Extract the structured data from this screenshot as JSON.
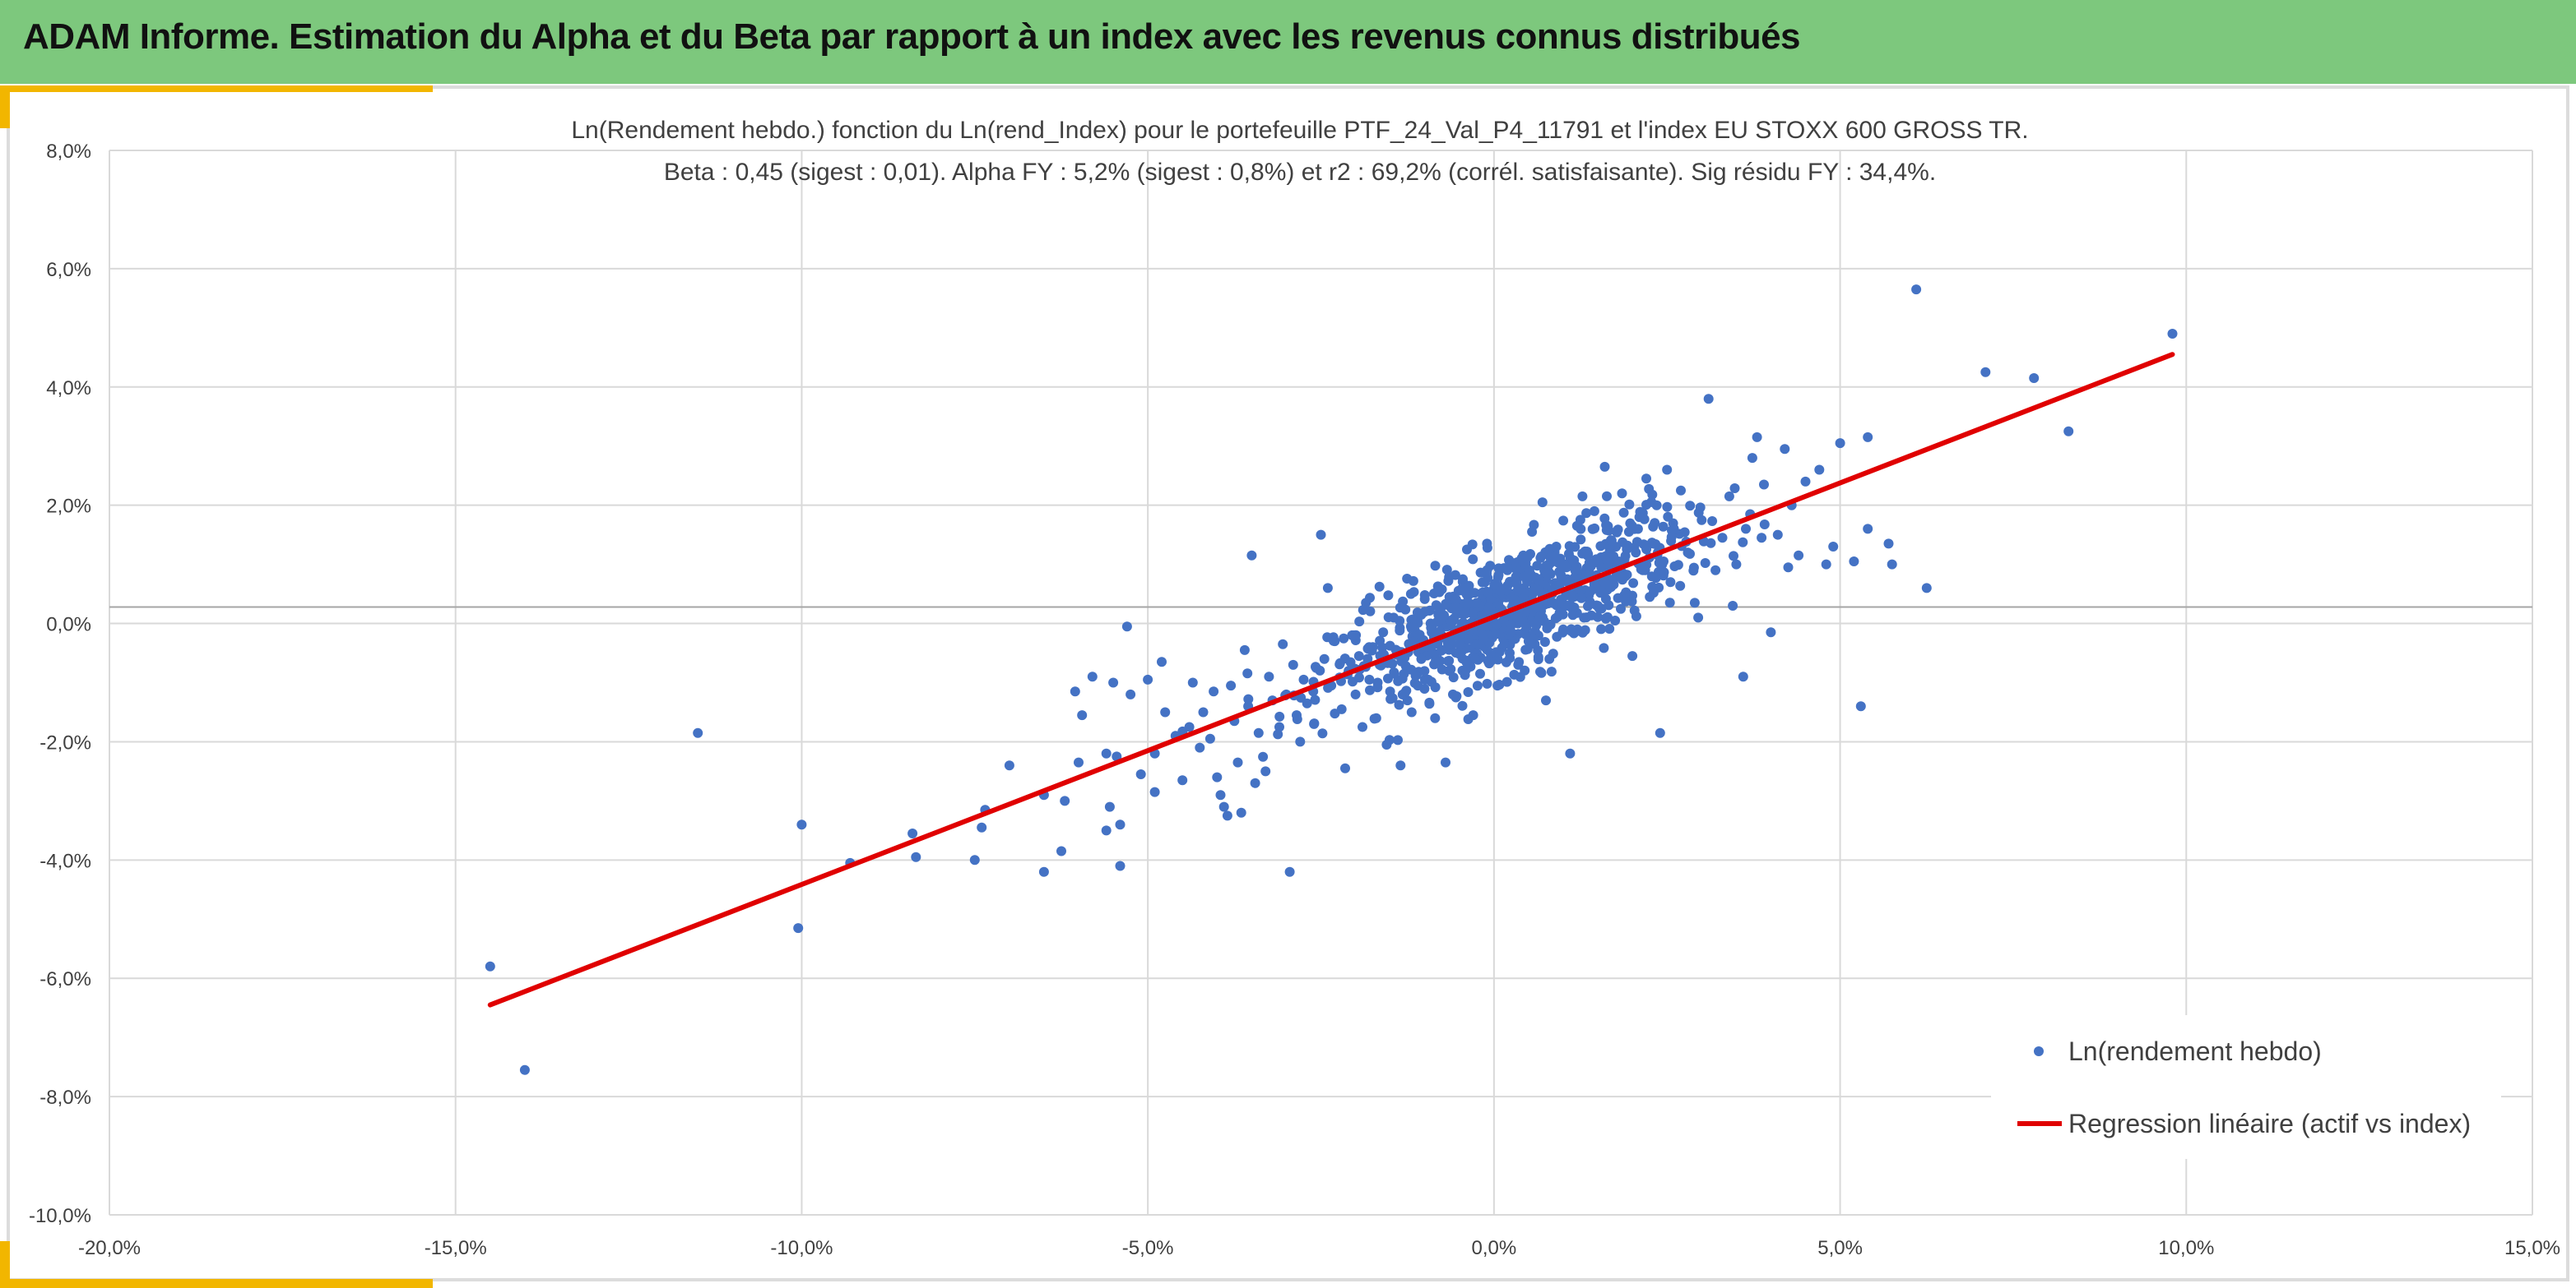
{
  "banner": {
    "title": "ADAM Informe. Estimation du Alpha et du Beta par rapport à un index avec les revenus connus distribués"
  },
  "colors": {
    "banner_bg": "#7dc87d",
    "accent": "#f2b600",
    "points": "#4472c4",
    "regression": "#e00000",
    "grid": "#d9d9d9"
  },
  "chart_data": {
    "type": "scatter",
    "title_line1": "Ln(Rendement hebdo.) fonction du Ln(rend_Index) pour le portefeuille PTF_24_Val_P4_11791 et l'index EU STOXX 600 GROSS TR.",
    "title_line2": "Beta : 0,45 (sigest : 0,01). Alpha FY : 5,2% (sigest : 0,8%) et r2 : 69,2% (corrél. satisfaisante). Sig résidu FY : 34,4%.",
    "xlim": [
      -20,
      15
    ],
    "ylim": [
      -10,
      8
    ],
    "x_unit": "%",
    "y_unit": "%",
    "x_ticks": [
      "-20,0%",
      "-15,0%",
      "-10,0%",
      "-5,0%",
      "0,0%",
      "5,0%",
      "10,0%",
      "15,0%"
    ],
    "x_tick_values": [
      -20,
      -15,
      -10,
      -5,
      0,
      5,
      10,
      15
    ],
    "y_ticks": [
      "8,0%",
      "6,0%",
      "4,0%",
      "2,0%",
      "0,0%",
      "-2,0%",
      "-4,0%",
      "-6,0%",
      "-8,0%",
      "-10,0%"
    ],
    "y_tick_values": [
      8,
      6,
      4,
      2,
      0,
      -2,
      -4,
      -6,
      -8,
      -10
    ],
    "grid": true,
    "legend_position": "bottom-right",
    "series": [
      {
        "name": "Ln(rendement hebdo)",
        "kind": "scatter",
        "color": "#4472c4",
        "points": [
          [
            -14.5,
            -5.8
          ],
          [
            -14.0,
            -7.55
          ],
          [
            -11.5,
            -1.85
          ],
          [
            -10.0,
            -3.4
          ],
          [
            -10.05,
            -5.15
          ],
          [
            -9.3,
            -4.05
          ],
          [
            -8.4,
            -3.55
          ],
          [
            -8.35,
            -3.95
          ],
          [
            -7.5,
            -4.0
          ],
          [
            -7.35,
            -3.15
          ],
          [
            -7.4,
            -3.45
          ],
          [
            -7.0,
            -2.4
          ],
          [
            -6.5,
            -4.2
          ],
          [
            -6.25,
            -3.85
          ],
          [
            -6.5,
            -2.9
          ],
          [
            -6.2,
            -3.0
          ],
          [
            -6.0,
            -2.35
          ],
          [
            -5.8,
            -0.9
          ],
          [
            -5.95,
            -1.55
          ],
          [
            -6.05,
            -1.15
          ],
          [
            -5.5,
            -1.0
          ],
          [
            -5.6,
            -2.2
          ],
          [
            -5.45,
            -2.25
          ],
          [
            -5.55,
            -3.1
          ],
          [
            -5.6,
            -3.5
          ],
          [
            -5.4,
            -3.4
          ],
          [
            -5.4,
            -4.1
          ],
          [
            -5.3,
            -0.05
          ],
          [
            -5.25,
            -1.2
          ],
          [
            -5.0,
            -0.95
          ],
          [
            -5.1,
            -2.55
          ],
          [
            -4.9,
            -2.2
          ],
          [
            -4.9,
            -2.85
          ],
          [
            -4.8,
            -0.65
          ],
          [
            -4.75,
            -1.5
          ],
          [
            -4.6,
            -1.9
          ],
          [
            -4.5,
            -2.65
          ],
          [
            -4.4,
            -1.75
          ],
          [
            -4.35,
            -1.0
          ],
          [
            -4.25,
            -2.1
          ],
          [
            -4.2,
            -1.5
          ],
          [
            -4.1,
            -1.95
          ],
          [
            -4.05,
            -1.15
          ],
          [
            -4.0,
            -2.6
          ],
          [
            -3.95,
            -2.9
          ],
          [
            -3.9,
            -3.1
          ],
          [
            -3.85,
            -3.25
          ],
          [
            -3.8,
            -1.05
          ],
          [
            -3.75,
            -1.65
          ],
          [
            -3.7,
            -2.35
          ],
          [
            -3.65,
            -3.2
          ],
          [
            -3.6,
            -0.45
          ],
          [
            -3.55,
            -1.4
          ],
          [
            -3.5,
            1.15
          ],
          [
            -3.45,
            -2.7
          ],
          [
            -3.4,
            -1.85
          ],
          [
            -3.3,
            -2.5
          ],
          [
            -3.25,
            -0.9
          ],
          [
            -3.2,
            -1.3
          ],
          [
            -3.1,
            -1.75
          ],
          [
            -3.05,
            -0.35
          ],
          [
            -3.0,
            -1.2
          ],
          [
            -2.95,
            -4.2
          ],
          [
            -2.9,
            -0.7
          ],
          [
            -2.85,
            -1.55
          ],
          [
            -2.8,
            -2.0
          ],
          [
            -2.75,
            -0.95
          ],
          [
            -2.7,
            -1.35
          ],
          [
            -2.6,
            -1.7
          ],
          [
            -2.5,
            1.5
          ],
          [
            -2.45,
            -0.6
          ],
          [
            -2.4,
            0.6
          ],
          [
            -2.35,
            -1.05
          ],
          [
            -2.3,
            -0.3
          ],
          [
            -2.2,
            -1.45
          ],
          [
            -2.15,
            -2.45
          ],
          [
            -2.1,
            -0.8
          ],
          [
            -2.05,
            -0.2
          ],
          [
            -2.0,
            -1.2
          ],
          [
            -1.95,
            -0.55
          ],
          [
            -1.9,
            -1.75
          ],
          [
            -1.85,
            0.35
          ],
          [
            -1.8,
            -0.95
          ],
          [
            -1.75,
            -0.4
          ],
          [
            -1.7,
            -1.6
          ],
          [
            -1.65,
            -0.7
          ],
          [
            -1.6,
            -0.15
          ],
          [
            -1.55,
            -2.05
          ],
          [
            -1.5,
            -1.15
          ],
          [
            -1.45,
            0.1
          ],
          [
            -1.4,
            -0.5
          ],
          [
            -1.35,
            -2.4
          ],
          [
            -1.3,
            -0.85
          ],
          [
            -1.25,
            -1.3
          ],
          [
            -1.2,
            0.5
          ],
          [
            -1.15,
            -0.3
          ],
          [
            -1.1,
            -1.05
          ],
          [
            -1.05,
            -0.6
          ],
          [
            -1.0,
            0.2
          ],
          [
            -0.95,
            -0.95
          ],
          [
            -0.9,
            -0.15
          ],
          [
            -0.85,
            -1.6
          ],
          [
            -0.8,
            0.55
          ],
          [
            -0.75,
            -0.45
          ],
          [
            -0.7,
            -2.35
          ],
          [
            -0.65,
            -0.8
          ],
          [
            -0.6,
            0.05
          ],
          [
            -0.55,
            -1.25
          ],
          [
            -0.5,
            -0.35
          ],
          [
            -0.45,
            0.75
          ],
          [
            -0.4,
            -0.65
          ],
          [
            -0.35,
            -0.1
          ],
          [
            -0.3,
            -1.55
          ],
          [
            -0.25,
            0.35
          ],
          [
            -0.2,
            -0.85
          ],
          [
            -0.15,
            -0.25
          ],
          [
            -0.1,
            1.35
          ],
          [
            -0.05,
            -0.5
          ],
          [
            0.0,
            0.15
          ],
          [
            0.05,
            -1.05
          ],
          [
            0.1,
            0.55
          ],
          [
            0.15,
            -0.35
          ],
          [
            0.2,
            0.95
          ],
          [
            0.25,
            -0.15
          ],
          [
            0.3,
            0.4
          ],
          [
            0.35,
            -0.7
          ],
          [
            0.4,
            1.1
          ],
          [
            0.45,
            0.2
          ],
          [
            0.5,
            -0.3
          ],
          [
            0.55,
            1.55
          ],
          [
            0.6,
            0.6
          ],
          [
            0.65,
            0.05
          ],
          [
            0.7,
            2.05
          ],
          [
            0.75,
            0.85
          ],
          [
            0.8,
            -0.6
          ],
          [
            0.85,
            0.35
          ],
          [
            0.9,
            1.3
          ],
          [
            0.95,
            0.65
          ],
          [
            1.0,
            -0.1
          ],
          [
            1.05,
            0.95
          ],
          [
            1.1,
            -2.2
          ],
          [
            1.15,
            0.45
          ],
          [
            1.2,
            1.65
          ],
          [
            1.25,
            0.75
          ],
          [
            1.3,
            0.1
          ],
          [
            1.35,
            1.15
          ],
          [
            1.4,
            0.55
          ],
          [
            1.45,
            1.9
          ],
          [
            1.5,
            0.3
          ],
          [
            1.55,
            0.95
          ],
          [
            1.6,
            2.65
          ],
          [
            1.65,
            0.65
          ],
          [
            1.7,
            1.4
          ],
          [
            1.75,
            0.05
          ],
          [
            1.8,
            1.05
          ],
          [
            1.85,
            2.2
          ],
          [
            1.9,
            0.8
          ],
          [
            1.95,
            1.55
          ],
          [
            2.0,
            -0.55
          ],
          [
            2.05,
            1.2
          ],
          [
            2.1,
            1.8
          ],
          [
            2.15,
            0.9
          ],
          [
            2.2,
            2.45
          ],
          [
            2.25,
            0.45
          ],
          [
            2.3,
            1.35
          ],
          [
            2.35,
            2.0
          ],
          [
            2.4,
            -1.85
          ],
          [
            2.45,
            1.05
          ],
          [
            2.5,
            2.6
          ],
          [
            2.55,
            0.7
          ],
          [
            2.6,
            1.6
          ],
          [
            2.7,
            2.25
          ],
          [
            2.8,
            1.2
          ],
          [
            2.9,
            0.35
          ],
          [
            3.0,
            1.75
          ],
          [
            3.1,
            3.8
          ],
          [
            3.2,
            0.9
          ],
          [
            3.3,
            1.45
          ],
          [
            3.4,
            2.15
          ],
          [
            3.5,
            1.0
          ],
          [
            3.6,
            -0.9
          ],
          [
            3.7,
            1.85
          ],
          [
            3.8,
            3.15
          ],
          [
            3.9,
            2.35
          ],
          [
            4.0,
            -0.15
          ],
          [
            4.1,
            1.5
          ],
          [
            4.2,
            2.95
          ],
          [
            4.3,
            2.0
          ],
          [
            4.4,
            1.15
          ],
          [
            4.5,
            2.4
          ],
          [
            4.7,
            2.6
          ],
          [
            4.9,
            1.3
          ],
          [
            5.0,
            3.05
          ],
          [
            5.3,
            -1.4
          ],
          [
            5.4,
            3.15
          ],
          [
            5.7,
            1.35
          ],
          [
            5.75,
            1.0
          ],
          [
            6.1,
            5.65
          ],
          [
            6.25,
            0.6
          ],
          [
            7.1,
            4.25
          ],
          [
            7.8,
            4.15
          ],
          [
            8.3,
            3.25
          ],
          [
            9.8,
            4.9
          ],
          [
            5.4,
            1.6
          ],
          [
            5.2,
            1.05
          ],
          [
            4.8,
            1.0
          ],
          [
            4.25,
            0.95
          ],
          [
            3.45,
            0.3
          ],
          [
            2.95,
            0.1
          ],
          [
            0.75,
            -1.3
          ]
        ]
      },
      {
        "name": "Regression linéaire (actif vs index)",
        "kind": "line",
        "color": "#e00000",
        "points": [
          [
            -14.5,
            -6.45
          ],
          [
            9.8,
            4.55
          ]
        ]
      }
    ],
    "dense_cluster": {
      "beta": 0.45,
      "intercept": 0.12,
      "x_center": 0.2,
      "x_spread": 1.25,
      "noise": 0.5,
      "count": 800
    }
  }
}
